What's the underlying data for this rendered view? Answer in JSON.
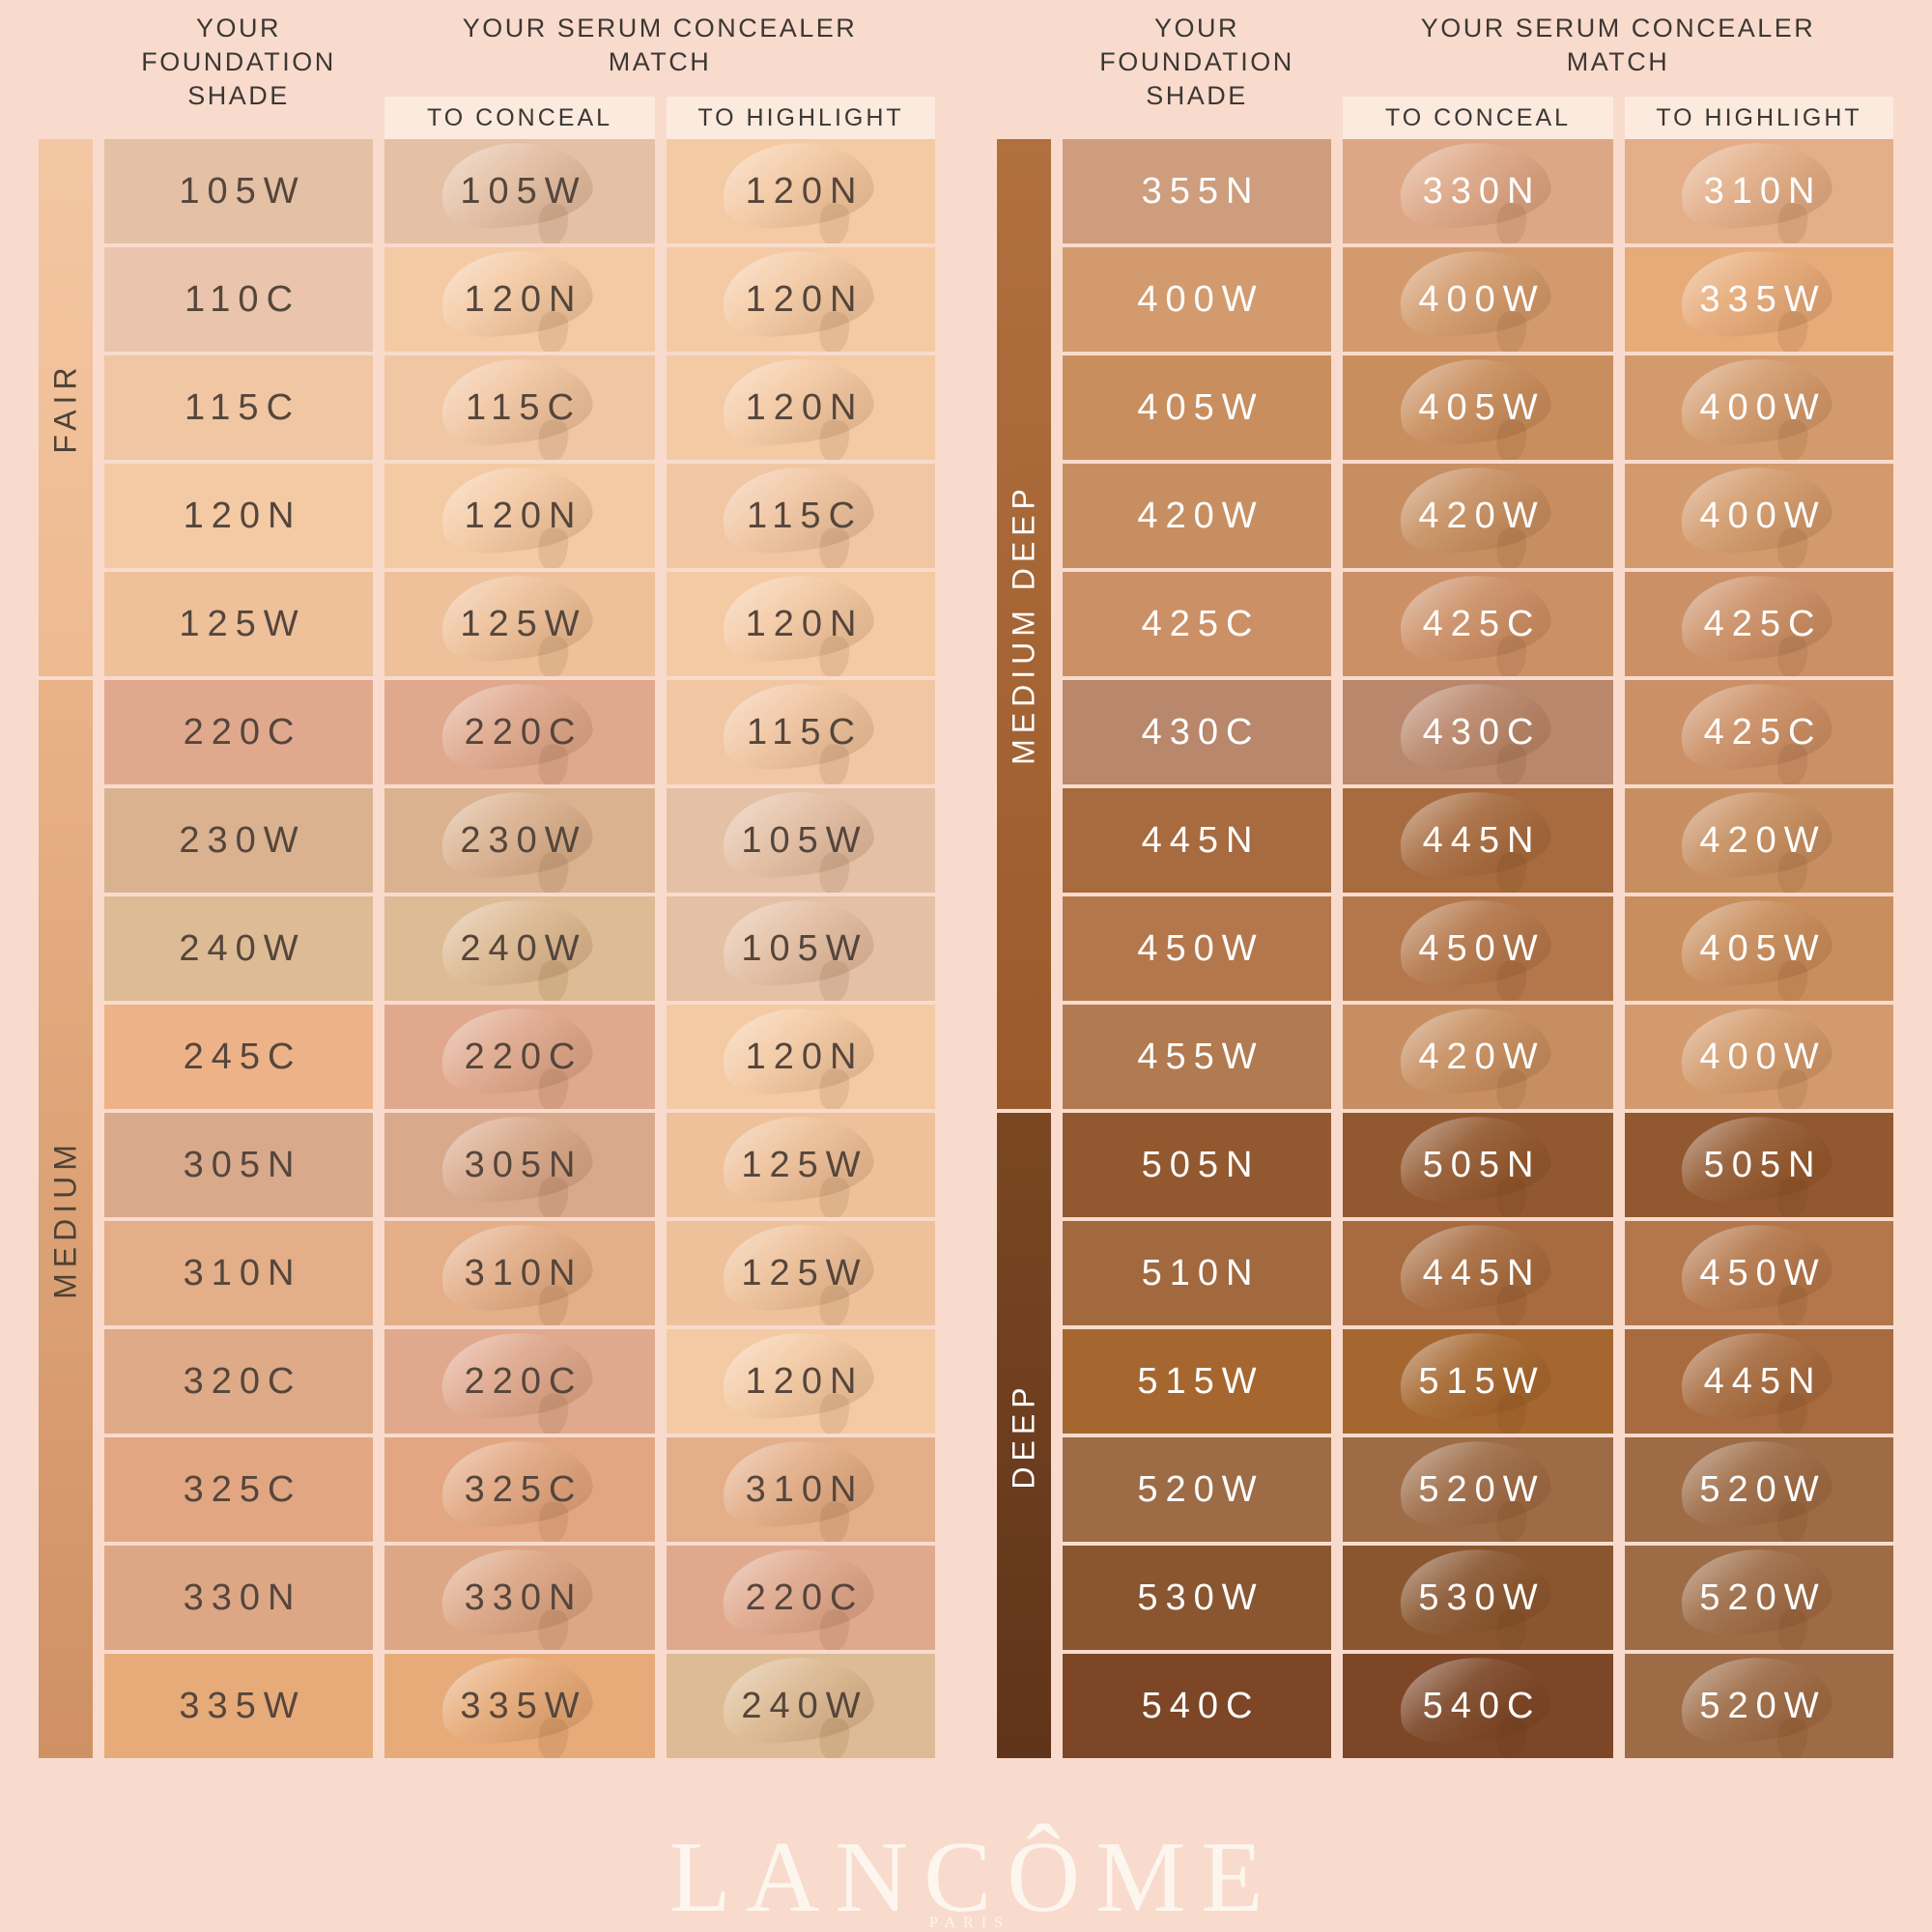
{
  "page": {
    "bg": "#f8dbcd"
  },
  "headers": {
    "foundation": "YOUR FOUNDATION SHADE",
    "match": "YOUR SERUM CONCEALER MATCH",
    "conceal": "TO CONCEAL",
    "highlight": "TO HIGHLIGHT"
  },
  "chart_data": {
    "type": "table",
    "title": "Foundation shade to serum concealer match chart",
    "columns": [
      "YOUR FOUNDATION SHADE",
      "TO CONCEAL",
      "TO HIGHLIGHT"
    ],
    "tables": [
      {
        "categories": [
          {
            "label": "FAIR",
            "rows": 5
          },
          {
            "label": "MEDIUM",
            "rows": 10
          }
        ],
        "rows": [
          {
            "foundation": "105W",
            "conceal": "105W",
            "highlight": "120N"
          },
          {
            "foundation": "110C",
            "conceal": "120N",
            "highlight": "120N"
          },
          {
            "foundation": "115C",
            "conceal": "115C",
            "highlight": "120N"
          },
          {
            "foundation": "120N",
            "conceal": "120N",
            "highlight": "115C"
          },
          {
            "foundation": "125W",
            "conceal": "125W",
            "highlight": "120N"
          },
          {
            "foundation": "220C",
            "conceal": "220C",
            "highlight": "115C"
          },
          {
            "foundation": "230W",
            "conceal": "230W",
            "highlight": "105W"
          },
          {
            "foundation": "240W",
            "conceal": "240W",
            "highlight": "105W"
          },
          {
            "foundation": "245C",
            "conceal": "220C",
            "highlight": "120N"
          },
          {
            "foundation": "305N",
            "conceal": "305N",
            "highlight": "125W"
          },
          {
            "foundation": "310N",
            "conceal": "310N",
            "highlight": "125W"
          },
          {
            "foundation": "320C",
            "conceal": "220C",
            "highlight": "120N"
          },
          {
            "foundation": "325C",
            "conceal": "325C",
            "highlight": "310N"
          },
          {
            "foundation": "330N",
            "conceal": "330N",
            "highlight": "220C"
          },
          {
            "foundation": "335W",
            "conceal": "335W",
            "highlight": "240W"
          }
        ]
      },
      {
        "categories": [
          {
            "label": "MEDIUM DEEP",
            "rows": 9
          },
          {
            "label": "DEEP",
            "rows": 6
          }
        ],
        "rows": [
          {
            "foundation": "355N",
            "conceal": "330N",
            "highlight": "310N"
          },
          {
            "foundation": "400W",
            "conceal": "400W",
            "highlight": "335W"
          },
          {
            "foundation": "405W",
            "conceal": "405W",
            "highlight": "400W"
          },
          {
            "foundation": "420W",
            "conceal": "420W",
            "highlight": "400W"
          },
          {
            "foundation": "425C",
            "conceal": "425C",
            "highlight": "425C"
          },
          {
            "foundation": "430C",
            "conceal": "430C",
            "highlight": "425C"
          },
          {
            "foundation": "445N",
            "conceal": "445N",
            "highlight": "420W"
          },
          {
            "foundation": "450W",
            "conceal": "450W",
            "highlight": "405W"
          },
          {
            "foundation": "455W",
            "conceal": "420W",
            "highlight": "400W"
          },
          {
            "foundation": "505N",
            "conceal": "505N",
            "highlight": "505N"
          },
          {
            "foundation": "510N",
            "conceal": "445N",
            "highlight": "450W"
          },
          {
            "foundation": "515W",
            "conceal": "515W",
            "highlight": "445N"
          },
          {
            "foundation": "520W",
            "conceal": "520W",
            "highlight": "520W"
          },
          {
            "foundation": "530W",
            "conceal": "530W",
            "highlight": "520W"
          },
          {
            "foundation": "540C",
            "conceal": "540C",
            "highlight": "520W"
          }
        ]
      }
    ]
  },
  "styles": {
    "subheader_bg": "#fceade",
    "shade_colors": {
      "105W": "#e4c0a5",
      "110C": "#eac4ac",
      "115C": "#f1c6a2",
      "120N": "#f4caa4",
      "125W": "#eec19a",
      "220C": "#e0a98e",
      "230W": "#dab290",
      "240W": "#ddbb94",
      "245C": "#eeb288",
      "305N": "#d9a98b",
      "310N": "#e3ae88",
      "320C": "#dfaa88",
      "325C": "#e2a782",
      "330N": "#dda786",
      "335W": "#e7ab79",
      "355N": "#ce9d7d",
      "400W": "#d39b6d",
      "405W": "#c98e5d",
      "420W": "#c78f61",
      "425C": "#cc9067",
      "430C": "#b9876b",
      "445N": "#a76b3f",
      "450W": "#b4774b",
      "455W": "#b17a51",
      "505N": "#92582f",
      "510N": "#a1693d",
      "515W": "#a5672f",
      "520W": "#9d6b46",
      "530W": "#895630",
      "540C": "#7c4627"
    },
    "panels": [
      {
        "text_color": "#55463c",
        "label_color": "#4e4235",
        "category_gradients": [
          [
            "#f3c7a3",
            "#eeba90"
          ],
          [
            "#e9b287",
            "#cf9164"
          ]
        ]
      },
      {
        "text_color": "#ffffff",
        "label_color": "#ffffff",
        "category_gradients": [
          [
            "#b1703e",
            "#9a5a2c"
          ],
          [
            "#7b4722",
            "#5f341a"
          ]
        ]
      }
    ]
  },
  "logo": {
    "brand": "LANCÔME",
    "sub": "PARIS"
  }
}
